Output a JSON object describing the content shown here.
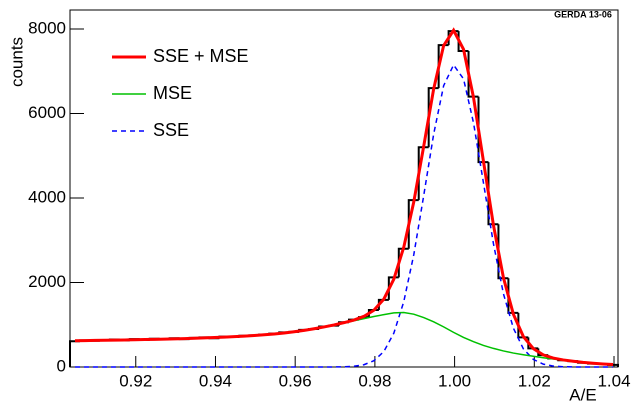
{
  "chart_data": {
    "type": "histogram",
    "annotation": "GERDA 13-06",
    "xlabel": "A/E",
    "ylabel": "counts",
    "xlim": [
      0.9035,
      1.041
    ],
    "ylim": [
      0,
      8450
    ],
    "xticks": [
      0.92,
      0.94,
      0.96,
      0.98,
      {
        "value": 1,
        "label": "1.00"
      },
      1.02,
      1.04
    ],
    "yticks": [
      0,
      2000,
      4000,
      6000,
      8000
    ],
    "hist_color": "#000000",
    "bins": [
      0.9035,
      0.906,
      0.9085,
      0.911,
      0.9135,
      0.916,
      0.9185,
      0.921,
      0.9235,
      0.926,
      0.9285,
      0.931,
      0.9335,
      0.936,
      0.9385,
      0.941,
      0.9435,
      0.946,
      0.9485,
      0.951,
      0.9535,
      0.956,
      0.9585,
      0.961,
      0.9635,
      0.966,
      0.9685,
      0.971,
      0.9735,
      0.976,
      0.9785,
      0.981,
      0.9835,
      0.986,
      0.9885,
      0.991,
      0.9935,
      0.996,
      0.9985,
      1.001,
      1.0035,
      1.006,
      1.0085,
      1.011,
      1.0135,
      1.016,
      1.0185,
      1.021,
      1.0235,
      1.026,
      1.0285,
      1.031,
      1.0335,
      1.036,
      1.0385,
      1.041
    ],
    "counts": [
      610,
      630,
      620,
      640,
      650,
      630,
      660,
      640,
      670,
      650,
      680,
      660,
      690,
      700,
      680,
      720,
      710,
      740,
      750,
      770,
      790,
      820,
      830,
      880,
      900,
      960,
      980,
      1060,
      1120,
      1180,
      1350,
      1590,
      2120,
      2800,
      3950,
      5200,
      6600,
      7620,
      7950,
      7480,
      6400,
      4850,
      3380,
      2100,
      1280,
      700,
      440,
      280,
      200,
      160,
      140,
      100,
      80,
      70,
      50
    ],
    "x": [
      0.90475,
      0.90725,
      0.90975,
      0.91225,
      0.91475,
      0.91725,
      0.91975,
      0.92225,
      0.92475,
      0.92725,
      0.92975,
      0.93225,
      0.93475,
      0.93725,
      0.93975,
      0.94225,
      0.94475,
      0.94725,
      0.94975,
      0.95225,
      0.95475,
      0.95725,
      0.95975,
      0.96225,
      0.96475,
      0.96725,
      0.96975,
      0.97225,
      0.97475,
      0.97725,
      0.97975,
      0.98225,
      0.98475,
      0.98725,
      0.98975,
      0.99225,
      0.99475,
      0.99725,
      0.99975,
      1.00225,
      1.00475,
      1.00725,
      1.00975,
      1.01225,
      1.01475,
      1.01725,
      1.01975,
      1.02225,
      1.02475,
      1.02725,
      1.02975,
      1.03225,
      1.03475,
      1.03725,
      1.03975
    ],
    "series": [
      {
        "name": "SSE + MSE",
        "color": "#ff0000",
        "width": 3,
        "dashed": false,
        "values": [
          620,
          625,
          630,
          632,
          635,
          640,
          645,
          650,
          655,
          660,
          665,
          672,
          680,
          688,
          697,
          707,
          718,
          730,
          745,
          762,
          782,
          806,
          835,
          868,
          906,
          948,
          996,
          1050,
          1112,
          1199,
          1344,
          1607,
          2079,
          2837,
          3903,
          5226,
          6582,
          7608,
          7970,
          7517,
          6378,
          4864,
          3357,
          2115,
          1250,
          721,
          435,
          287,
          212,
          167,
          137,
          110,
          90,
          72,
          58
        ]
      },
      {
        "name": "MSE",
        "color": "#00c000",
        "width": 1.5,
        "dashed": false,
        "values": [
          620,
          625,
          630,
          632,
          635,
          640,
          645,
          650,
          655,
          660,
          665,
          672,
          680,
          688,
          697,
          707,
          718,
          730,
          745,
          762,
          782,
          806,
          835,
          868,
          906,
          948,
          995,
          1045,
          1095,
          1145,
          1195,
          1240,
          1280,
          1290,
          1250,
          1170,
          1070,
          950,
          820,
          700,
          600,
          510,
          440,
          380,
          330,
          290,
          255,
          220,
          190,
          160,
          135,
          110,
          90,
          72,
          58
        ]
      },
      {
        "name": "SSE",
        "color": "#0000ff",
        "width": 1.5,
        "dashed": true,
        "values": [
          0,
          0,
          0,
          0,
          0,
          0,
          0,
          0,
          0,
          0,
          0,
          0,
          0,
          0,
          0,
          0,
          0,
          0,
          0,
          0,
          0,
          0,
          0,
          0,
          0,
          0,
          1,
          5,
          17,
          54,
          149,
          367,
          799,
          1547,
          2653,
          4056,
          5512,
          6658,
          7150,
          6817,
          5778,
          4354,
          2917,
          1735,
          920,
          431,
          180,
          67,
          22,
          7,
          2,
          0,
          0,
          0,
          0
        ]
      }
    ]
  }
}
